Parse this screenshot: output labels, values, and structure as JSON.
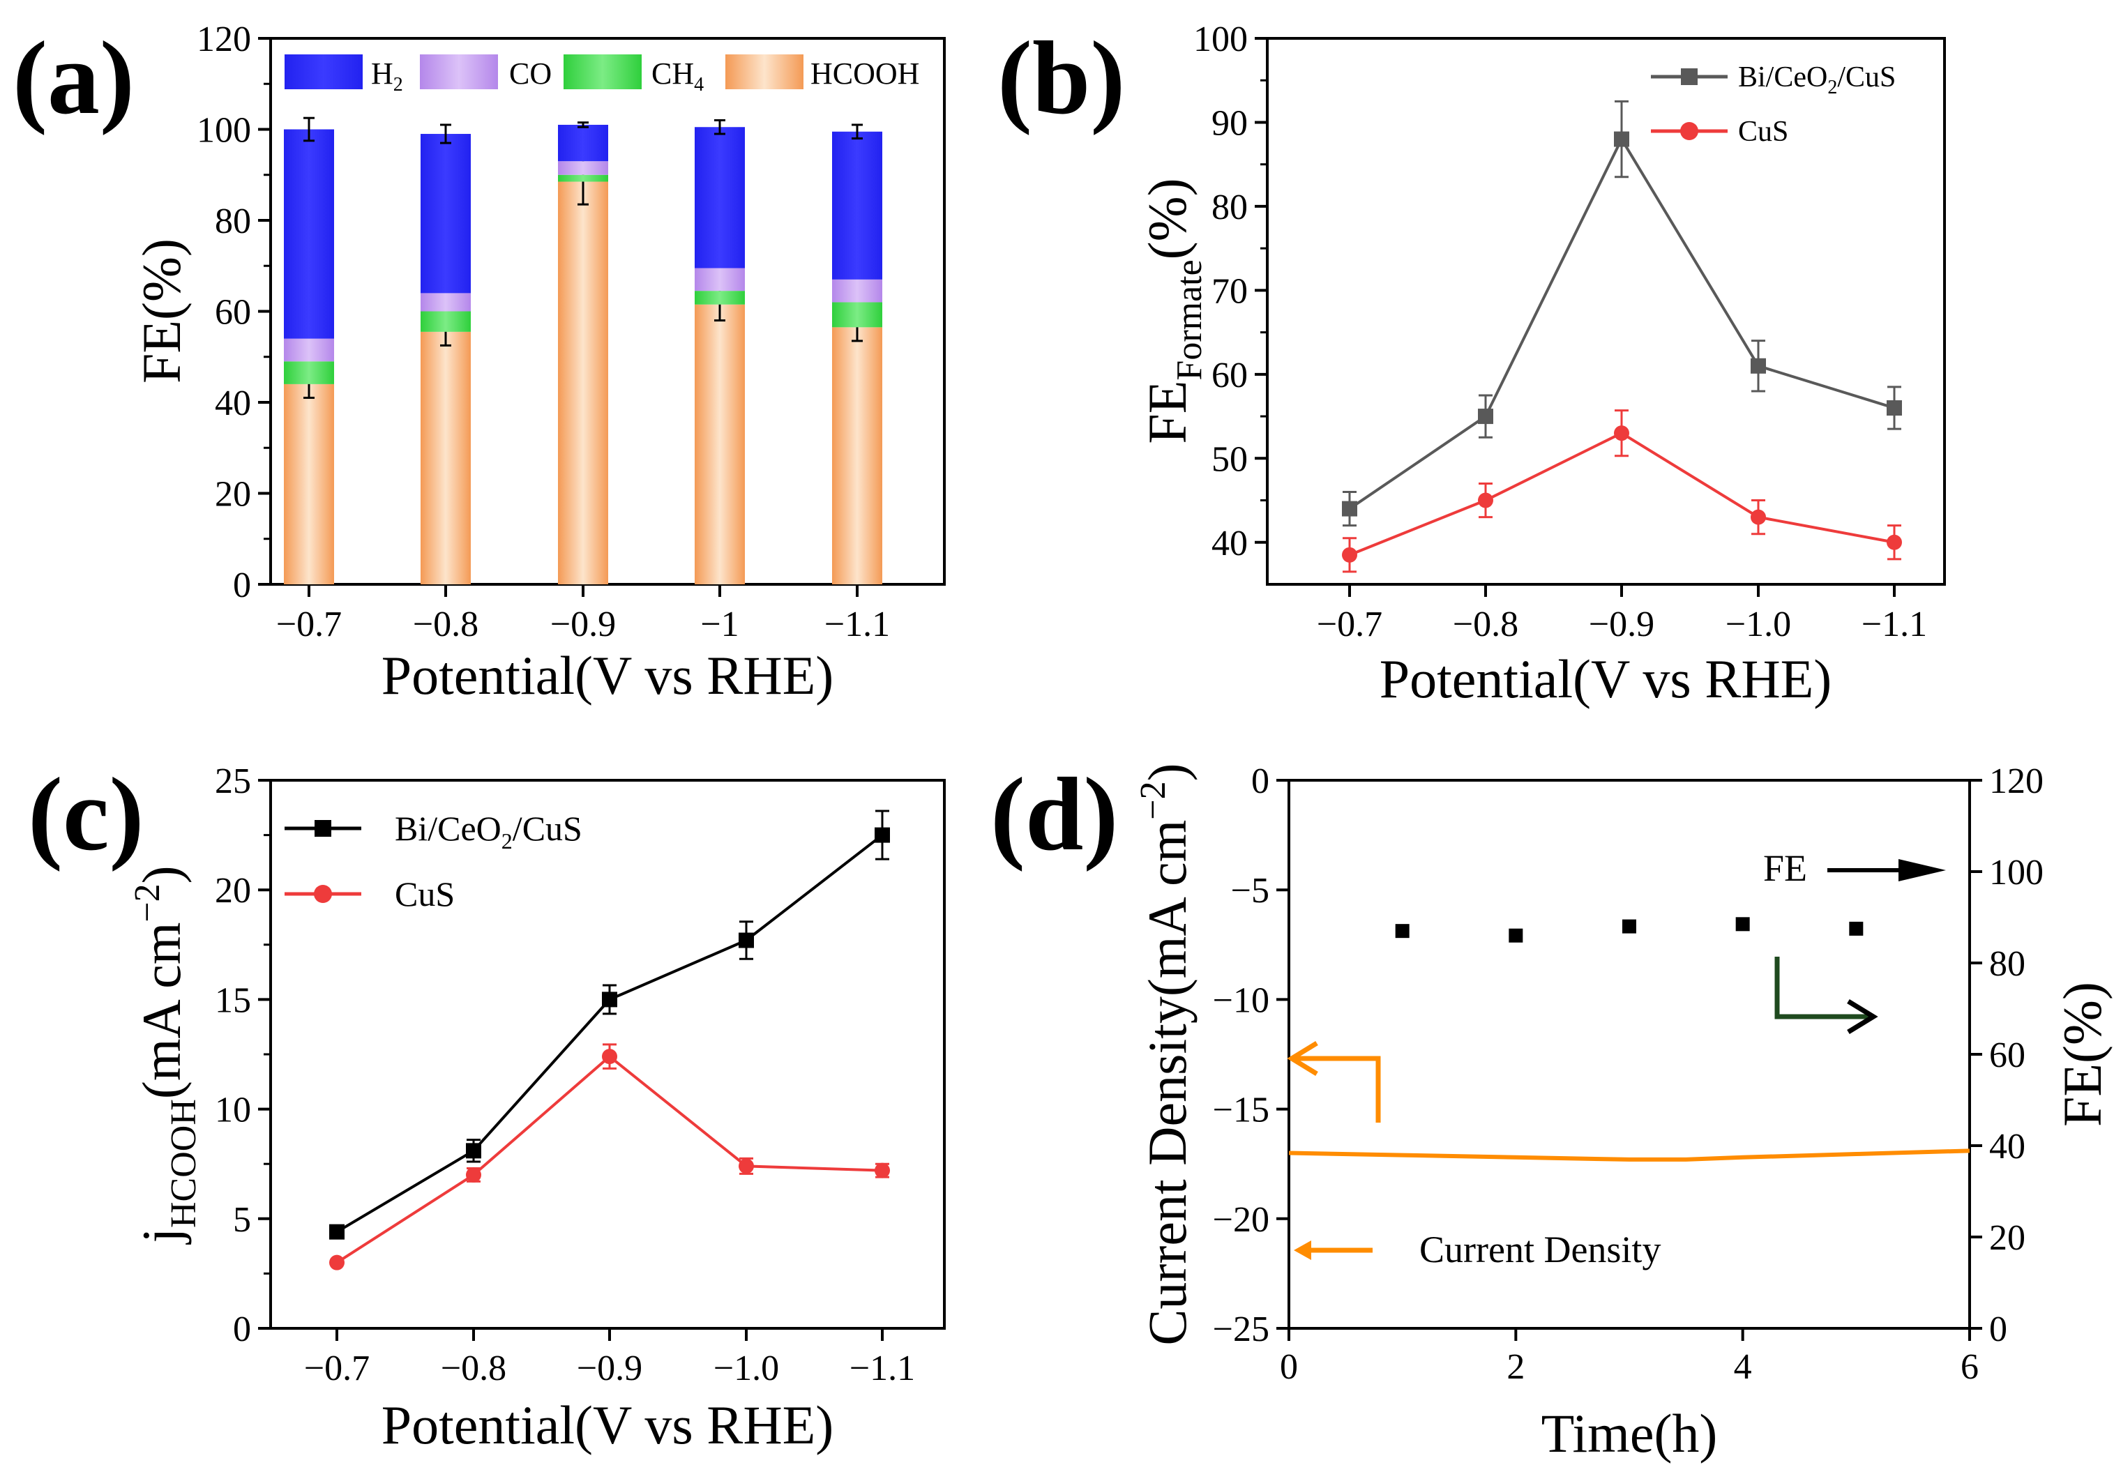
{
  "chart_data": [
    {
      "id": "a",
      "panel_label": "(a)",
      "type": "bar",
      "stacked": true,
      "categories": [
        "−0.7",
        "−0.8",
        "−0.9",
        "−1",
        "−1.1"
      ],
      "series": [
        {
          "name": "HCOOH",
          "values": [
            44,
            55.5,
            88.5,
            61.5,
            56.5
          ],
          "errors": [
            3,
            3,
            5,
            3.5,
            3
          ]
        },
        {
          "name": "CH4",
          "values": [
            5,
            4.5,
            1.5,
            3,
            5.5
          ]
        },
        {
          "name": "CO",
          "values": [
            5,
            4,
            3,
            5,
            5
          ]
        },
        {
          "name": "H2",
          "values": [
            46,
            35,
            8,
            31,
            32.5
          ],
          "errors": [
            2.5,
            2,
            0.5,
            1.5,
            1.5
          ]
        }
      ],
      "legend": [
        {
          "key": "H2",
          "label": "H",
          "sub": "2",
          "color": "#2929ff"
        },
        {
          "key": "CO",
          "label": "CO",
          "sub": "",
          "color": "#c09cf0"
        },
        {
          "key": "CH4",
          "label": "CH",
          "sub": "4",
          "color": "#3ed94a"
        },
        {
          "key": "HCOOH",
          "label": "HCOOH",
          "sub": "",
          "color": "#f7a866"
        }
      ],
      "colors": {
        "H2": "#2929ff",
        "CO": "#c09cf0",
        "CH4": "#3ed94a",
        "HCOOH": "#f7a866",
        "HCOOH_light": "#fde4cb"
      },
      "ylabel": "FE(%)",
      "xlabel": "Potential(V vs RHE)",
      "ylim": [
        0,
        120
      ],
      "yticks": [
        "0",
        "20",
        "40",
        "60",
        "80",
        "100",
        "120"
      ]
    },
    {
      "id": "b",
      "panel_label": "(b)",
      "type": "line",
      "categories": [
        "−0.7",
        "−0.8",
        "−0.9",
        "−1.0",
        "−1.1"
      ],
      "series": [
        {
          "name": "Bi/CeO2/CuS",
          "label": "Bi/CeO",
          "label_sub": "2",
          "label_tail": "/CuS",
          "marker": "square",
          "color": "#595959",
          "values": [
            44,
            55,
            88,
            61,
            56
          ],
          "errors": [
            2,
            2.5,
            4.5,
            3,
            2.5
          ]
        },
        {
          "name": "CuS",
          "label": "CuS",
          "marker": "circle",
          "color": "#ee3b3b",
          "values": [
            38.5,
            45,
            53,
            43,
            40
          ],
          "errors": [
            2,
            2,
            2.7,
            2,
            2
          ]
        }
      ],
      "ylabel_main": "FE",
      "ylabel_sub": "Formate",
      "ylabel_tail": "(%)",
      "xlabel": "Potential(V vs RHE)",
      "ylim": [
        35,
        100
      ],
      "yticks": [
        "40",
        "50",
        "60",
        "70",
        "80",
        "90",
        "100"
      ]
    },
    {
      "id": "c",
      "panel_label": "(c)",
      "type": "line",
      "categories": [
        "−0.7",
        "−0.8",
        "−0.9",
        "−1.0",
        "−1.1"
      ],
      "series": [
        {
          "name": "Bi/CeO2/CuS",
          "label": "Bi/CeO",
          "label_sub": "2",
          "label_tail": "/CuS",
          "marker": "square",
          "color": "#000000",
          "values": [
            4.4,
            8.1,
            15,
            17.7,
            22.5
          ],
          "errors": [
            0,
            0.5,
            0.65,
            0.85,
            1.1
          ]
        },
        {
          "name": "CuS",
          "label": "CuS",
          "marker": "circle",
          "color": "#ee3b3b",
          "values": [
            3,
            7,
            12.4,
            7.4,
            7.2
          ],
          "errors": [
            0,
            0.3,
            0.55,
            0.35,
            0.3
          ]
        }
      ],
      "ylabel_main": "j",
      "ylabel_sub": "HCOOH",
      "ylabel_tail": "(mA cm",
      "ylabel_sup": "−2",
      "ylabel_close": ")",
      "xlabel": "Potential(V vs RHE)",
      "ylim": [
        0,
        25
      ],
      "yticks": [
        "0",
        "5",
        "10",
        "15",
        "20",
        "25"
      ]
    },
    {
      "id": "d",
      "panel_label": "(d)",
      "type": "line",
      "dual_axis": true,
      "xlabel": "Time(h)",
      "xlim": [
        0,
        6
      ],
      "xticks": [
        "0",
        "2",
        "4",
        "6"
      ],
      "ylabel_left": "Current Density(mA cm",
      "ylabel_left_sup": "−2",
      "ylabel_left_close": ")",
      "ylim_left": [
        -25,
        0
      ],
      "yticks_left": [
        "−25",
        "−20",
        "−15",
        "−10",
        "−5",
        "0"
      ],
      "ylabel_right": "FE(%)",
      "ylim_right": [
        0,
        120
      ],
      "yticks_right": [
        "0",
        "20",
        "40",
        "60",
        "80",
        "100",
        "120"
      ],
      "current_density": {
        "color": "#ff8c00",
        "x": [
          0,
          1,
          2,
          3,
          3.5,
          4,
          5,
          6
        ],
        "y": [
          -17,
          -17.1,
          -17.2,
          -17.3,
          -17.3,
          -17.2,
          -17.05,
          -16.9
        ]
      },
      "fe_points": {
        "color": "#000000",
        "x": [
          1,
          2,
          3,
          4,
          5
        ],
        "y": [
          87,
          86,
          88,
          88.5,
          87.5
        ]
      },
      "annotations": {
        "fe_label": "FE",
        "current_label": "Current Density"
      }
    }
  ]
}
